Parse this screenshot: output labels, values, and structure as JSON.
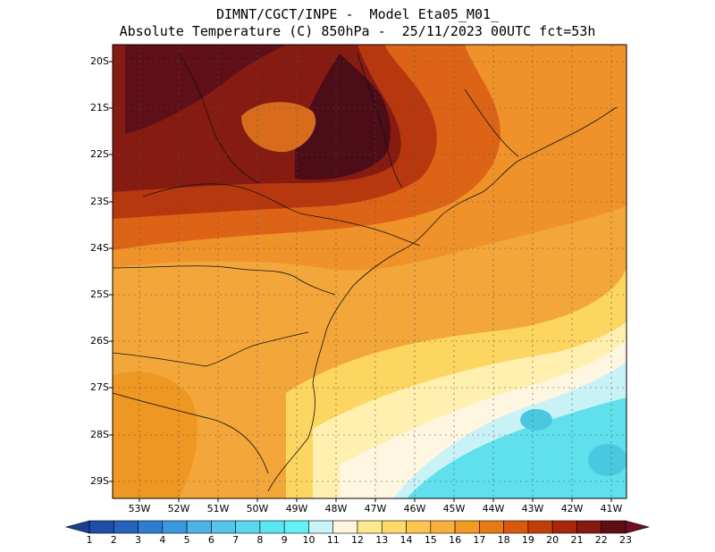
{
  "header": {
    "line1": "DIMNT/CGCT/INPE -  Model Eta05_M01_",
    "line2": "Absolute Temperature (C) 850hPa -  25/11/2023 00UTC fct=53h"
  },
  "map": {
    "lat_labels": [
      "20S",
      "21S",
      "22S",
      "23S",
      "24S",
      "25S",
      "26S",
      "27S",
      "28S",
      "29S"
    ],
    "lon_labels": [
      "53W",
      "52W",
      "51W",
      "50W",
      "49W",
      "48W",
      "47W",
      "46W",
      "45W",
      "44W",
      "43W",
      "42W",
      "41W"
    ]
  },
  "colorbar": {
    "labels": [
      "1",
      "2",
      "3",
      "4",
      "5",
      "6",
      "7",
      "8",
      "9",
      "10",
      "11",
      "12",
      "13",
      "14",
      "15",
      "16",
      "17",
      "18",
      "19",
      "20",
      "21",
      "22",
      "23"
    ],
    "colors": [
      "#1b3f8f",
      "#1f4ea6",
      "#2563bd",
      "#2e7dd0",
      "#3c98de",
      "#4fb2e6",
      "#55c6ea",
      "#58d8ee",
      "#5ae6f2",
      "#62f2f6",
      "#c9f3fb",
      "#fff4dc",
      "#ffe98e",
      "#ffd96a",
      "#fcc451",
      "#f7af3d",
      "#f19a24",
      "#e67a14",
      "#d9590c",
      "#c43e0a",
      "#a8260c",
      "#861a10",
      "#5e0f14",
      "#6e0e24"
    ]
  },
  "colors": {
    "cold": "#55dbe8",
    "mild": "#fce784",
    "warm": "#f3a532",
    "hot": "#d95f12",
    "hottest": "#5a0f1c"
  }
}
